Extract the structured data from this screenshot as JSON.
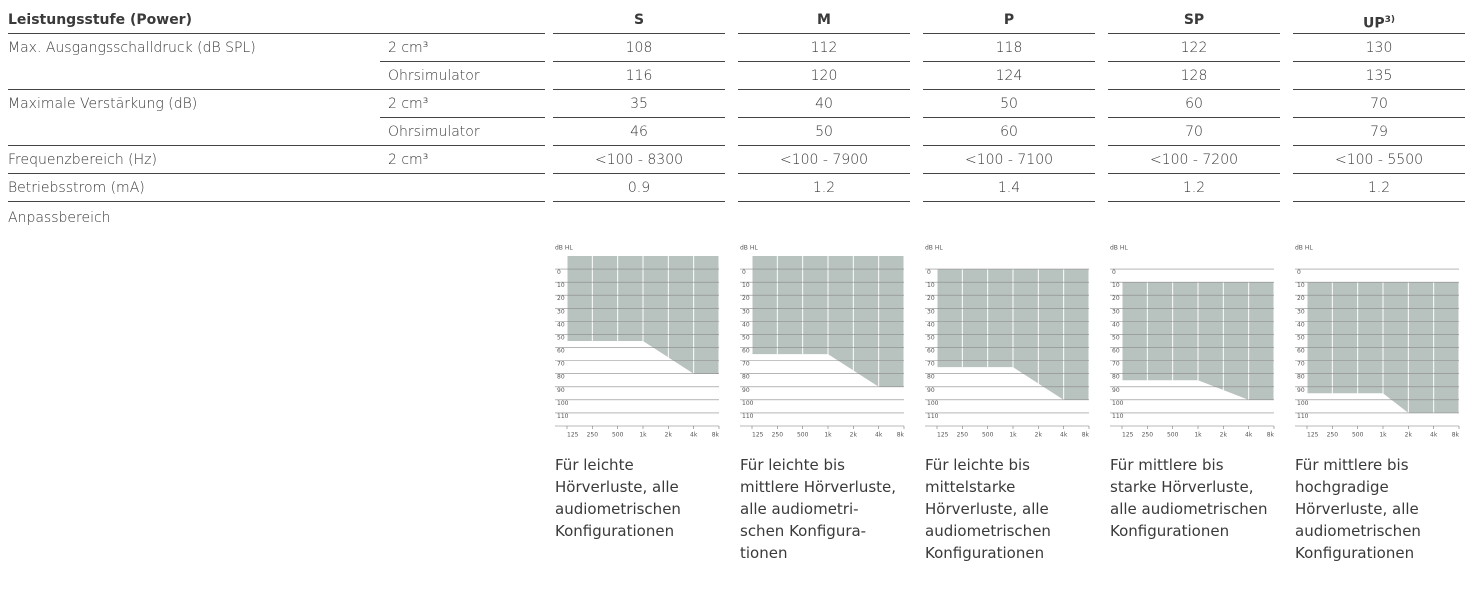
{
  "table": {
    "header": {
      "label": "Leistungsstufe (Power)",
      "columns": [
        {
          "name": "S"
        },
        {
          "name": "M"
        },
        {
          "name": "P"
        },
        {
          "name": "SP"
        },
        {
          "name": "UP",
          "note": "3)"
        }
      ]
    },
    "groups": [
      {
        "label": "Max. Ausgangsschalldruck (dB SPL)",
        "rows": [
          {
            "sub": "2 cm³",
            "values": [
              108,
              112,
              118,
              122,
              130
            ]
          },
          {
            "sub": "Ohrsimulator",
            "values": [
              116,
              120,
              124,
              128,
              135
            ]
          }
        ]
      },
      {
        "label": "Maximale Verstärkung (dB)",
        "rows": [
          {
            "sub": "2 cm³",
            "values": [
              35,
              40,
              50,
              60,
              70
            ]
          },
          {
            "sub": "Ohrsimulator",
            "values": [
              46,
              50,
              60,
              70,
              79
            ]
          }
        ]
      },
      {
        "label": "Frequenzbereich (Hz)",
        "rows": [
          {
            "sub": "2 cm³",
            "values": [
              "<100 - 8300",
              "<100 - 7900",
              "<100 - 7100",
              "<100 - 7200",
              "<100 - 5500"
            ]
          }
        ]
      },
      {
        "label": "Betriebsstrom (mA)",
        "rows": [
          {
            "values": [
              0.9,
              1.2,
              1.4,
              1.2,
              1.2
            ]
          }
        ]
      }
    ]
  },
  "fitting": {
    "label": "Anpassbereich",
    "axes": {
      "y_label": "dB HL",
      "ylim": [
        -10,
        120
      ],
      "yticks": [
        0,
        10,
        20,
        30,
        40,
        50,
        60,
        70,
        80,
        90,
        100,
        110
      ],
      "xlim": [
        125,
        8000
      ],
      "log_x": true,
      "xticks": [
        125,
        250,
        500,
        {
          "value": 1000,
          "label": "1k"
        },
        {
          "value": 2000,
          "label": "2k"
        },
        {
          "value": 4000,
          "label": "4k"
        },
        {
          "value": 8000,
          "label": "8k"
        }
      ],
      "color": "#b8c2bf"
    },
    "charts": [
      {
        "type": "area",
        "top": -10,
        "bottom_x": [
          125,
          1000,
          4000,
          8000
        ],
        "bottom": [
          55,
          55,
          80,
          80
        ],
        "description_lines": [
          "Für leichte",
          "Hörverluste, alle",
          "audiometrischen",
          "Konfigurationen"
        ]
      },
      {
        "type": "area",
        "top": -10,
        "bottom_x": [
          125,
          1000,
          4000,
          8000
        ],
        "bottom": [
          65,
          65,
          90,
          90
        ],
        "description_lines": [
          "Für leichte bis",
          "mittlere Hörverluste,",
          "alle audiometri-",
          "schen Konfigura-",
          "tionen"
        ]
      },
      {
        "type": "area",
        "top": 0,
        "bottom_x": [
          125,
          1000,
          4000,
          8000
        ],
        "bottom": [
          75,
          75,
          100,
          100
        ],
        "description_lines": [
          "Für leichte bis",
          "mittelstarke",
          "Hörverluste, alle",
          "audiometrischen",
          "Konfigurationen"
        ]
      },
      {
        "type": "area",
        "top": 10,
        "bottom_x": [
          125,
          1000,
          4000,
          8000
        ],
        "bottom": [
          85,
          85,
          100,
          100
        ],
        "description_lines": [
          "Für mittlere bis",
          "starke Hörverluste,",
          "alle audiometrischen",
          "Konfigurationen"
        ]
      },
      {
        "type": "area",
        "top": 10,
        "bottom_x": [
          125,
          1000,
          2000,
          8000
        ],
        "bottom": [
          95,
          95,
          110,
          110
        ],
        "description_lines": [
          "Für mittlere bis",
          "hochgradige",
          "Hörverluste, alle",
          "audiometrischen",
          "Konfigurationen"
        ]
      }
    ]
  }
}
